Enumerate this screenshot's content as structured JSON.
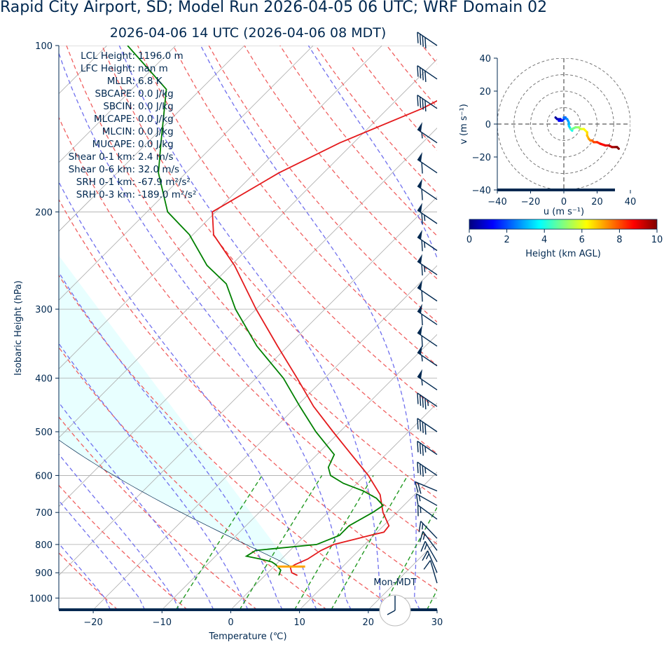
{
  "title": "Rapid City Airport, SD; Model Run 2026-04-05 06 UTC; WRF Domain 02",
  "subtitle": "2026-04-06 14 UTC  (2026-04-06 08 MDT)",
  "colors": {
    "text": "#002850",
    "temperature": "#e41a1c",
    "dewpoint": "#008000",
    "dry_adiabat": "#f06060",
    "moist_adiabat": "#7070ee",
    "mixing_ratio": "#229922",
    "isotherm": "#aaaaaa",
    "cape_shade": "#e0ffff",
    "lcl_marker": "#ffa500",
    "barb": "#002850"
  },
  "parameters": [
    {
      "name": "LCL Height:",
      "value": "1196.0 m"
    },
    {
      "name": "LFC Height:",
      "value": "nan m"
    },
    {
      "name": "MLLR:",
      "value": "6.8 K"
    },
    {
      "name": "SBCAPE:",
      "value": "0.0 J/kg"
    },
    {
      "name": "SBCIN:",
      "value": "0.0 J/kg"
    },
    {
      "name": "MLCAPE:",
      "value": "0.0 J/kg"
    },
    {
      "name": "MLCIN:",
      "value": "0.0 J/kg"
    },
    {
      "name": "MUCAPE:",
      "value": "0.0 J/kg"
    },
    {
      "name": "Shear 0-1 km:",
      "value": "2.4 m/s"
    },
    {
      "name": "Shear 0-6 km:",
      "value": "32.0 m/s"
    },
    {
      "name": "SRH 0-1 km:",
      "value": "-67.9 m²/s²"
    },
    {
      "name": "SRH 0-3 km:",
      "value": "-189.0 m²/s²"
    }
  ],
  "clock_label": "Mon-MDT",
  "chart_data": [
    {
      "type": "line",
      "chart": "skew-t",
      "xlabel": "Temperature (℃)",
      "ylabel": "Isobaric Height (hPa)",
      "xlim": [
        -25,
        30
      ],
      "ylim": [
        1050,
        100
      ],
      "log_y": true,
      "skew": 45,
      "x_ticks": [
        -20,
        -10,
        0,
        10,
        20,
        30
      ],
      "y_ticks": [
        1000,
        900,
        800,
        700,
        600,
        500,
        400,
        300,
        200,
        100
      ],
      "grid": true,
      "temperature": {
        "p": [
          910,
          900,
          880,
          870,
          850,
          820,
          800,
          770,
          760,
          740,
          700,
          650,
          600,
          550,
          500,
          450,
          400,
          350,
          300,
          250,
          220,
          200,
          170,
          150,
          130,
          115,
          100
        ],
        "t": [
          4.7,
          3.5,
          2.5,
          2.8,
          3.8,
          4.5,
          5.5,
          9.5,
          11.0,
          10.8,
          8.0,
          5.0,
          0.5,
          -5.0,
          -11.0,
          -17.5,
          -24.0,
          -31.5,
          -40.0,
          -49.5,
          -57.0,
          -60.5,
          -56.5,
          -52.0,
          -45.0,
          -41.0,
          -41.0
        ]
      },
      "dewpoint": {
        "p": [
          910,
          890,
          870,
          860,
          850,
          840,
          820,
          800,
          770,
          740,
          700,
          680,
          660,
          640,
          620,
          600,
          580,
          550,
          500,
          450,
          400,
          350,
          300,
          270,
          250,
          220,
          200,
          170,
          150,
          120,
          100
        ],
        "td": [
          2.0,
          1.5,
          0.0,
          -1.0,
          -3.0,
          -5.5,
          -5.0,
          3.0,
          5.0,
          5.0,
          6.5,
          7.0,
          5.0,
          2.0,
          -2.0,
          -5.0,
          -6.5,
          -7.5,
          -13.5,
          -19.5,
          -26.0,
          -34.5,
          -43.0,
          -48.0,
          -53.5,
          -60.5,
          -67.0,
          -74.0,
          -78.0,
          -85.0,
          -97.0
        ]
      },
      "lcl": {
        "p": 877,
        "t": 2.5
      },
      "wind_barbs": [
        {
          "p": 100,
          "speed_kt": 40
        },
        {
          "p": 115,
          "speed_kt": 40
        },
        {
          "p": 130,
          "speed_kt": 40
        },
        {
          "p": 150,
          "speed_kt": 55
        },
        {
          "p": 170,
          "speed_kt": 60
        },
        {
          "p": 190,
          "speed_kt": 60
        },
        {
          "p": 210,
          "speed_kt": 65
        },
        {
          "p": 235,
          "speed_kt": 65
        },
        {
          "p": 260,
          "speed_kt": 65
        },
        {
          "p": 290,
          "speed_kt": 60
        },
        {
          "p": 320,
          "speed_kt": 60
        },
        {
          "p": 350,
          "speed_kt": 60
        },
        {
          "p": 380,
          "speed_kt": 55
        },
        {
          "p": 420,
          "speed_kt": 55
        },
        {
          "p": 450,
          "speed_kt": 45
        },
        {
          "p": 500,
          "speed_kt": 40
        },
        {
          "p": 550,
          "speed_kt": 35
        },
        {
          "p": 600,
          "speed_kt": 35
        },
        {
          "p": 640,
          "speed_kt": 20
        },
        {
          "p": 680,
          "speed_kt": 15
        },
        {
          "p": 720,
          "speed_kt": 15
        },
        {
          "p": 780,
          "speed_kt": 15
        },
        {
          "p": 820,
          "speed_kt": 15
        },
        {
          "p": 860,
          "speed_kt": 15
        },
        {
          "p": 900,
          "speed_kt": 15
        },
        {
          "p": 940,
          "speed_kt": 10
        }
      ]
    },
    {
      "type": "line",
      "chart": "hodograph",
      "xlabel": "u (m s⁻¹)",
      "ylabel": "v (m s⁻¹)",
      "xlim": [
        -40,
        40
      ],
      "ylim": [
        -40,
        40
      ],
      "ticks": [
        -40,
        -20,
        0,
        20,
        40
      ],
      "rings": [
        10,
        20,
        30,
        40
      ],
      "u": [
        -5,
        -4,
        -2,
        -3,
        -1,
        0,
        1,
        0,
        2,
        3,
        3,
        4,
        5,
        5,
        4,
        5,
        7,
        9,
        10,
        11,
        12,
        14,
        14,
        15,
        16,
        17,
        18,
        20,
        22,
        25,
        27,
        29,
        31,
        32,
        33
      ],
      "v": [
        4,
        3,
        3,
        2,
        2,
        3,
        4,
        4,
        3,
        1,
        -1,
        -3,
        -4,
        -3,
        -3,
        -3,
        -2,
        -2,
        -3,
        -3,
        -3,
        -5,
        -7,
        -9,
        -10,
        -10,
        -11,
        -11,
        -12,
        -13,
        -13,
        -14,
        -14,
        -14,
        -15
      ],
      "height_km": [
        0,
        0.3,
        0.6,
        0.9,
        1.2,
        1.5,
        1.8,
        2.1,
        2.4,
        2.7,
        3.0,
        3.3,
        3.6,
        3.9,
        4.2,
        4.5,
        4.8,
        5.1,
        5.4,
        5.7,
        6.0,
        6.3,
        6.6,
        6.9,
        7.2,
        7.5,
        7.8,
        8.1,
        8.4,
        8.7,
        9.0,
        9.3,
        9.6,
        9.8,
        10.0
      ],
      "colorbar": {
        "label": "Height (km AGL)",
        "ticks": [
          0,
          2,
          4,
          6,
          8,
          10
        ],
        "range": [
          0,
          10
        ],
        "colormap": "jet"
      }
    }
  ]
}
